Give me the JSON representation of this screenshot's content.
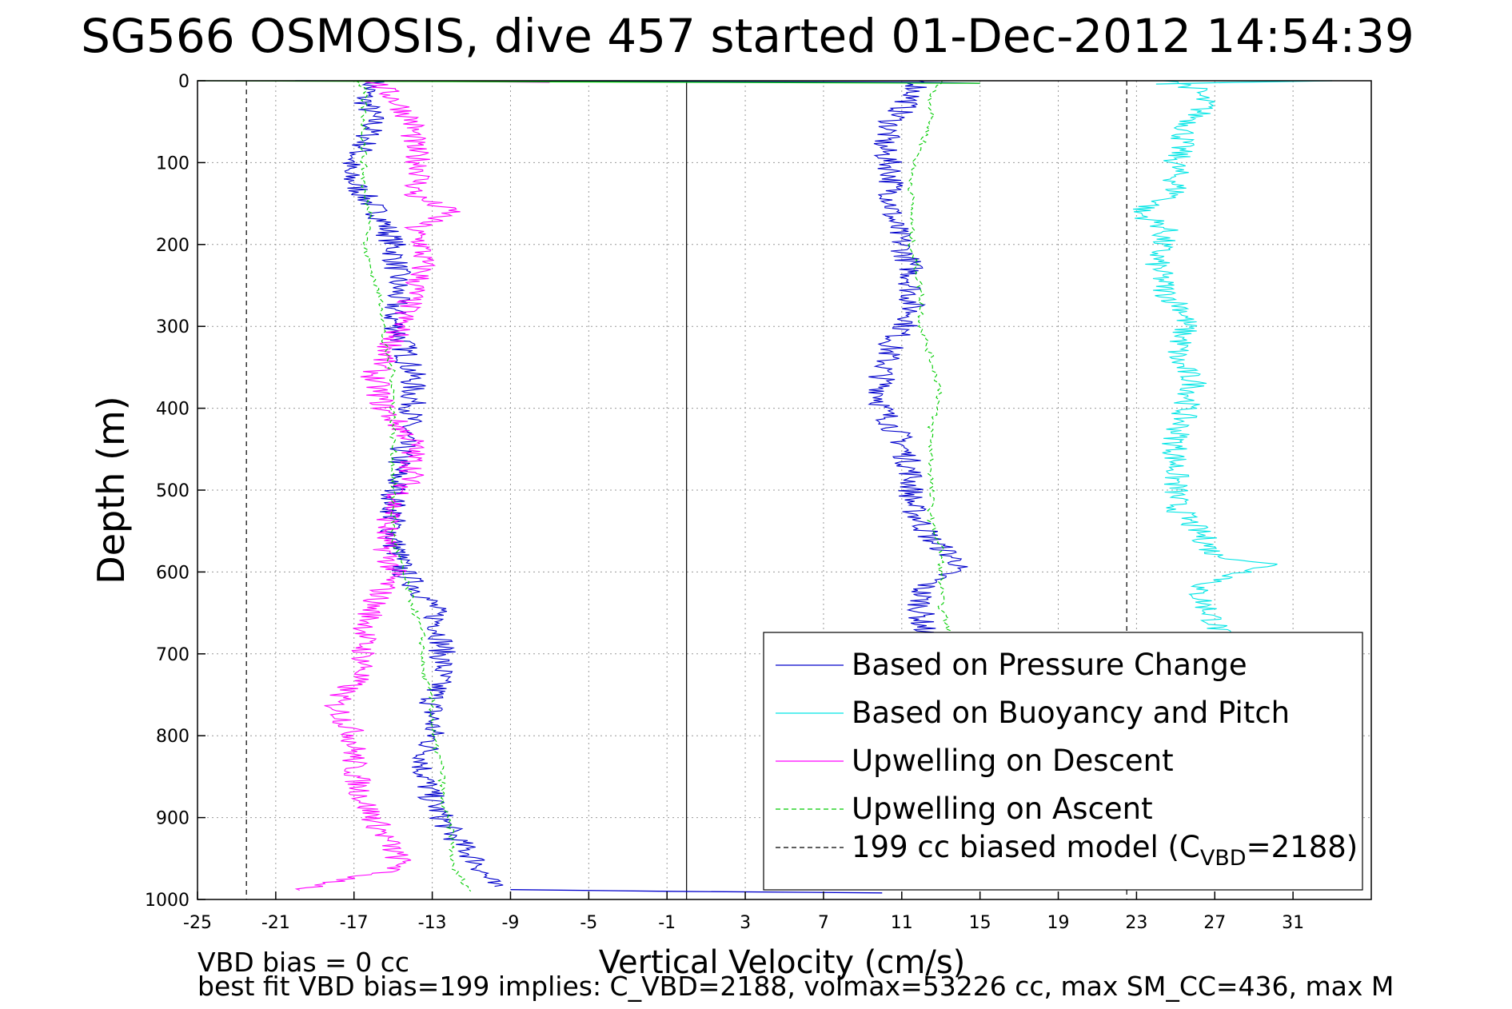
{
  "chart_data": {
    "type": "line",
    "title": "SG566 OSMOSIS, dive 457 started 01-Dec-2012 14:54:39",
    "xlabel": "Vertical Velocity (cm/s)",
    "ylabel": "Depth (m)",
    "xlim": [
      -25,
      35
    ],
    "ylim": [
      1000,
      0
    ],
    "y_reversed": true,
    "xticks": [
      -25,
      -21,
      -17,
      -13,
      -9,
      -5,
      -1,
      3,
      7,
      11,
      15,
      19,
      23,
      27,
      31
    ],
    "yticks": [
      0,
      100,
      200,
      300,
      400,
      500,
      600,
      700,
      800,
      900,
      1000
    ],
    "grid": true,
    "legend_position": "bottom-right",
    "legend": [
      {
        "label": "Based on Pressure Change",
        "color": "#0000cc",
        "style": "solid"
      },
      {
        "label": "Based on Buoyancy and Pitch",
        "color": "#00e5e5",
        "style": "solid"
      },
      {
        "label": "Upwelling on Descent",
        "color": "#ff00ff",
        "style": "solid"
      },
      {
        "label": "Upwelling on Ascent",
        "color": "#00cc00",
        "style": "dashed"
      },
      {
        "label": "199 cc biased model (C",
        "sub": "VBD",
        "suffix": "=2188)",
        "color": "#000000",
        "style": "dashed"
      }
    ],
    "series": [
      {
        "name": "Based on Pressure Change (descent)",
        "color": "#0000cc",
        "style": "solid",
        "depth": [
          0,
          20,
          50,
          80,
          110,
          140,
          170,
          200,
          230,
          260,
          290,
          320,
          360,
          400,
          440,
          480,
          520,
          560,
          600,
          640,
          680,
          720,
          760,
          800,
          840,
          880,
          920,
          960,
          985
        ],
        "values": [
          -16,
          -16.5,
          -16,
          -16.5,
          -17.5,
          -16.5,
          -15.5,
          -15,
          -14.8,
          -14.8,
          -15,
          -14.5,
          -14,
          -14,
          -14.5,
          -14.8,
          -15,
          -15,
          -14.5,
          -13,
          -12.5,
          -12.5,
          -13,
          -13,
          -13.5,
          -13,
          -12,
          -10.5,
          -10
        ]
      },
      {
        "name": "Based on Pressure Change (ascent)",
        "color": "#0000cc",
        "style": "solid",
        "depth": [
          0,
          20,
          50,
          80,
          110,
          140,
          170,
          200,
          230,
          260,
          290,
          320,
          360,
          400,
          440,
          480,
          520,
          560,
          590,
          620,
          660,
          700
        ],
        "values": [
          12,
          11.5,
          10.5,
          10,
          10.5,
          10.5,
          10.5,
          11,
          11.5,
          11.5,
          11.5,
          10.5,
          10,
          10,
          11,
          11.5,
          11.5,
          12.5,
          14,
          12,
          12,
          12.5
        ]
      },
      {
        "name": "Based on Buoyancy and Pitch",
        "color": "#00e5e5",
        "style": "solid",
        "depth": [
          0,
          10,
          30,
          60,
          100,
          140,
          160,
          180,
          220,
          260,
          280,
          300,
          340,
          370,
          400,
          440,
          480,
          520,
          560,
          580,
          590,
          620,
          660,
          700
        ],
        "values": [
          25,
          26,
          26.5,
          25.5,
          25,
          25,
          23,
          24.5,
          24,
          24.5,
          25.5,
          25.5,
          25,
          26,
          25.5,
          25,
          25,
          25,
          26.5,
          27,
          30,
          26,
          27,
          27.5
        ]
      },
      {
        "name": "Upwelling on Descent",
        "color": "#ff00ff",
        "style": "solid",
        "depth": [
          0,
          20,
          50,
          80,
          110,
          140,
          160,
          180,
          200,
          230,
          260,
          290,
          320,
          360,
          400,
          440,
          480,
          520,
          560,
          600,
          640,
          680,
          720,
          760,
          800,
          840,
          880,
          920,
          960,
          990
        ],
        "values": [
          -16,
          -15,
          -14,
          -14,
          -13.5,
          -14,
          -12,
          -14,
          -13.5,
          -13.5,
          -14,
          -14.5,
          -15,
          -16,
          -15.5,
          -14,
          -14,
          -15,
          -15.5,
          -15,
          -16,
          -16.5,
          -16.5,
          -18,
          -17,
          -17,
          -16.5,
          -15.5,
          -14.5,
          -20
        ]
      },
      {
        "name": "Upwelling on Ascent",
        "color": "#00cc00",
        "style": "dashed",
        "depth": [
          0,
          10,
          30,
          60,
          100,
          140,
          170,
          200,
          240,
          280,
          320,
          360,
          400,
          440,
          480,
          520,
          560,
          600,
          640,
          680,
          720,
          760,
          800,
          840,
          880,
          920,
          960,
          990
        ],
        "values": [
          -17,
          -16.5,
          -16.5,
          -16.5,
          -16.5,
          -16.5,
          -16,
          -16.5,
          -16,
          -15.5,
          -15.5,
          -15,
          -15,
          -15,
          -15,
          -15,
          -15,
          -14.5,
          -14,
          -13.5,
          -13.5,
          -13,
          -13,
          -12.5,
          -12.5,
          -12,
          -12,
          -11
        ]
      },
      {
        "name": "Upwelling on Ascent (ascent)",
        "color": "#00cc00",
        "style": "dashed",
        "depth": [
          0,
          20,
          50,
          80,
          110,
          150,
          200,
          260,
          300,
          340,
          380,
          420,
          460,
          500,
          540,
          570,
          600,
          640,
          680
        ],
        "values": [
          13,
          12.5,
          12.5,
          12,
          11.5,
          11.5,
          11.5,
          12,
          12,
          12.5,
          13,
          12.5,
          12.5,
          12.5,
          12.5,
          13,
          13,
          13,
          13.5
        ]
      }
    ],
    "surface_spikes": [
      {
        "color": "#0000cc",
        "depth": [
          0,
          2,
          3
        ],
        "values": [
          -20,
          12,
          15
        ]
      },
      {
        "color": "#00e5e5",
        "depth": [
          0,
          2,
          4
        ],
        "values": [
          33,
          28,
          24
        ]
      },
      {
        "color": "#ff00ff",
        "depth": [
          0,
          2
        ],
        "values": [
          -16,
          -7
        ]
      },
      {
        "color": "#00cc00",
        "depth": [
          0,
          3
        ],
        "values": [
          -25,
          15
        ]
      }
    ],
    "bottom_transition": {
      "depth": [
        988,
        990,
        992
      ],
      "values": [
        -9,
        -1,
        10
      ]
    },
    "reference_lines": [
      {
        "x": -22.5,
        "style": "dashed",
        "color": "#000000"
      },
      {
        "x": 0,
        "style": "solid",
        "color": "#000000"
      },
      {
        "x": 22.5,
        "style": "dashed",
        "color": "#000000"
      }
    ]
  },
  "footer": {
    "line1": "VBD bias = 0 cc",
    "line2": "best fit VBD bias=199 implies: C_VBD=2188, volmax=53226 cc, max SM_CC=436, max M"
  }
}
